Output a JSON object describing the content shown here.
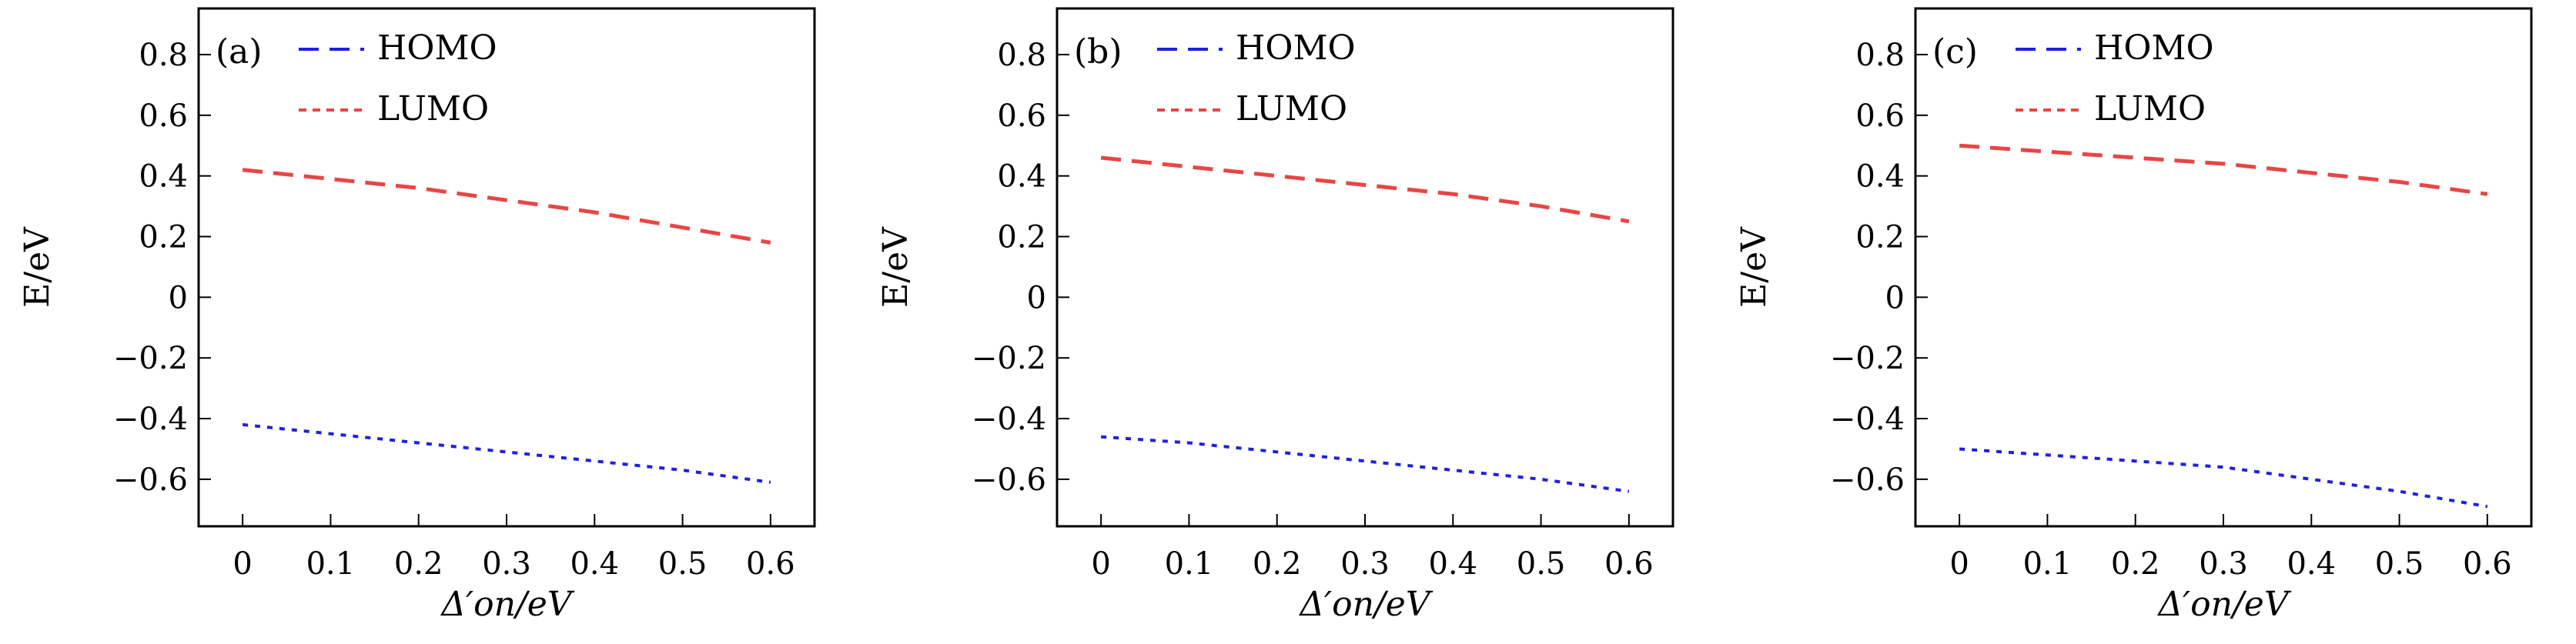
{
  "chart_data": [
    {
      "type": "line",
      "panel_label": "(a)",
      "xlabel": "Δ′on/eV",
      "ylabel": "E/eV",
      "xlim": [
        -0.05,
        0.65
      ],
      "ylim": [
        -0.755,
        0.952
      ],
      "xticks": [
        0,
        0.1,
        0.2,
        0.3,
        0.4,
        0.5,
        0.6
      ],
      "xtick_labels": [
        "0",
        "0.1",
        "0.2",
        "0.3",
        "0.4",
        "0.5",
        "0.6"
      ],
      "yticks": [
        -0.6,
        -0.4,
        -0.2,
        0,
        0.2,
        0.4,
        0.6,
        0.8
      ],
      "ytick_labels": [
        "−0.6",
        "−0.4",
        "−0.2",
        "0",
        "0.2",
        "0.4",
        "0.6",
        "0.8"
      ],
      "legend_position": "top-left",
      "x": [
        0,
        0.1,
        0.2,
        0.3,
        0.4,
        0.5,
        0.6
      ],
      "series": [
        {
          "name": "HOMO",
          "color": "#1f1fe0",
          "values": [
            -0.42,
            -0.45,
            -0.48,
            -0.51,
            -0.54,
            -0.57,
            -0.61
          ]
        },
        {
          "name": "LUMO",
          "color": "#e84545",
          "values": [
            0.42,
            0.39,
            0.36,
            0.32,
            0.28,
            0.23,
            0.18
          ]
        }
      ]
    },
    {
      "type": "line",
      "panel_label": "(b)",
      "xlabel": "Δ′on/eV",
      "ylabel": "E/eV",
      "xlim": [
        -0.05,
        0.65
      ],
      "ylim": [
        -0.755,
        0.952
      ],
      "xticks": [
        0,
        0.1,
        0.2,
        0.3,
        0.4,
        0.5,
        0.6
      ],
      "xtick_labels": [
        "0",
        "0.1",
        "0.2",
        "0.3",
        "0.4",
        "0.5",
        "0.6"
      ],
      "yticks": [
        -0.6,
        -0.4,
        -0.2,
        0,
        0.2,
        0.4,
        0.6,
        0.8
      ],
      "ytick_labels": [
        "−0.6",
        "−0.4",
        "−0.2",
        "0",
        "0.2",
        "0.4",
        "0.6",
        "0.8"
      ],
      "legend_position": "top-left",
      "x": [
        0,
        0.1,
        0.2,
        0.3,
        0.4,
        0.5,
        0.6
      ],
      "series": [
        {
          "name": "HOMO",
          "color": "#1f1fe0",
          "values": [
            -0.46,
            -0.48,
            -0.51,
            -0.54,
            -0.57,
            -0.6,
            -0.64
          ]
        },
        {
          "name": "LUMO",
          "color": "#e84545",
          "values": [
            0.46,
            0.43,
            0.4,
            0.37,
            0.34,
            0.3,
            0.25
          ]
        }
      ]
    },
    {
      "type": "line",
      "panel_label": "(c)",
      "xlabel": "Δ′on/eV",
      "ylabel": "E/eV",
      "xlim": [
        -0.05,
        0.65
      ],
      "ylim": [
        -0.755,
        0.952
      ],
      "xticks": [
        0,
        0.1,
        0.2,
        0.3,
        0.4,
        0.5,
        0.6
      ],
      "xtick_labels": [
        "0",
        "0.1",
        "0.2",
        "0.3",
        "0.4",
        "0.5",
        "0.6"
      ],
      "yticks": [
        -0.6,
        -0.4,
        -0.2,
        0,
        0.2,
        0.4,
        0.6,
        0.8
      ],
      "ytick_labels": [
        "−0.6",
        "−0.4",
        "−0.2",
        "0",
        "0.2",
        "0.4",
        "0.6",
        "0.8"
      ],
      "legend_position": "top-left",
      "x": [
        0,
        0.1,
        0.2,
        0.3,
        0.4,
        0.5,
        0.6
      ],
      "series": [
        {
          "name": "HOMO",
          "color": "#1f1fe0",
          "values": [
            -0.5,
            -0.52,
            -0.54,
            -0.56,
            -0.6,
            -0.64,
            -0.69
          ]
        },
        {
          "name": "LUMO",
          "color": "#e84545",
          "values": [
            0.5,
            0.48,
            0.46,
            0.44,
            0.41,
            0.38,
            0.34
          ]
        }
      ]
    }
  ]
}
